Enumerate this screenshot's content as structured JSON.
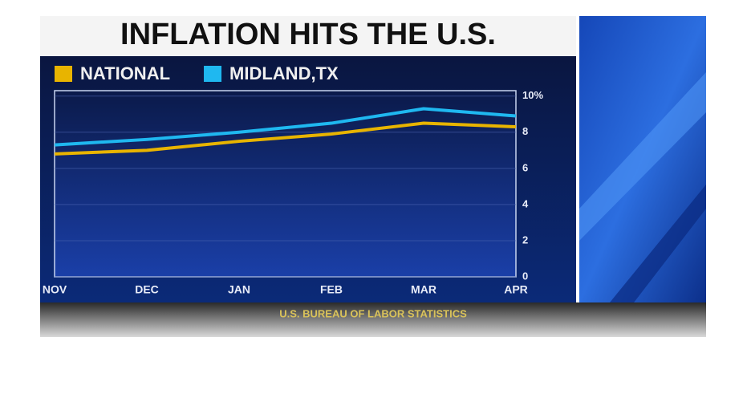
{
  "chart_data": {
    "type": "line",
    "title": "INFLATION HITS THE U.S.",
    "source": "U.S. BUREAU OF LABOR STATISTICS",
    "categories": [
      "NOV",
      "DEC",
      "JAN",
      "FEB",
      "MAR",
      "APR"
    ],
    "series": [
      {
        "name": "NATIONAL",
        "color": "#e8b400",
        "values": [
          6.8,
          7.0,
          7.5,
          7.9,
          8.5,
          8.3
        ]
      },
      {
        "name": "MIDLAND,TX",
        "color": "#1fb8f0",
        "values": [
          7.3,
          7.6,
          8.0,
          8.5,
          9.3,
          8.9
        ]
      }
    ],
    "ylim": [
      0,
      10.3
    ],
    "yticks": [
      0,
      2,
      4,
      6,
      8,
      {
        "value": 10,
        "label": "10%"
      }
    ],
    "grid": true
  }
}
